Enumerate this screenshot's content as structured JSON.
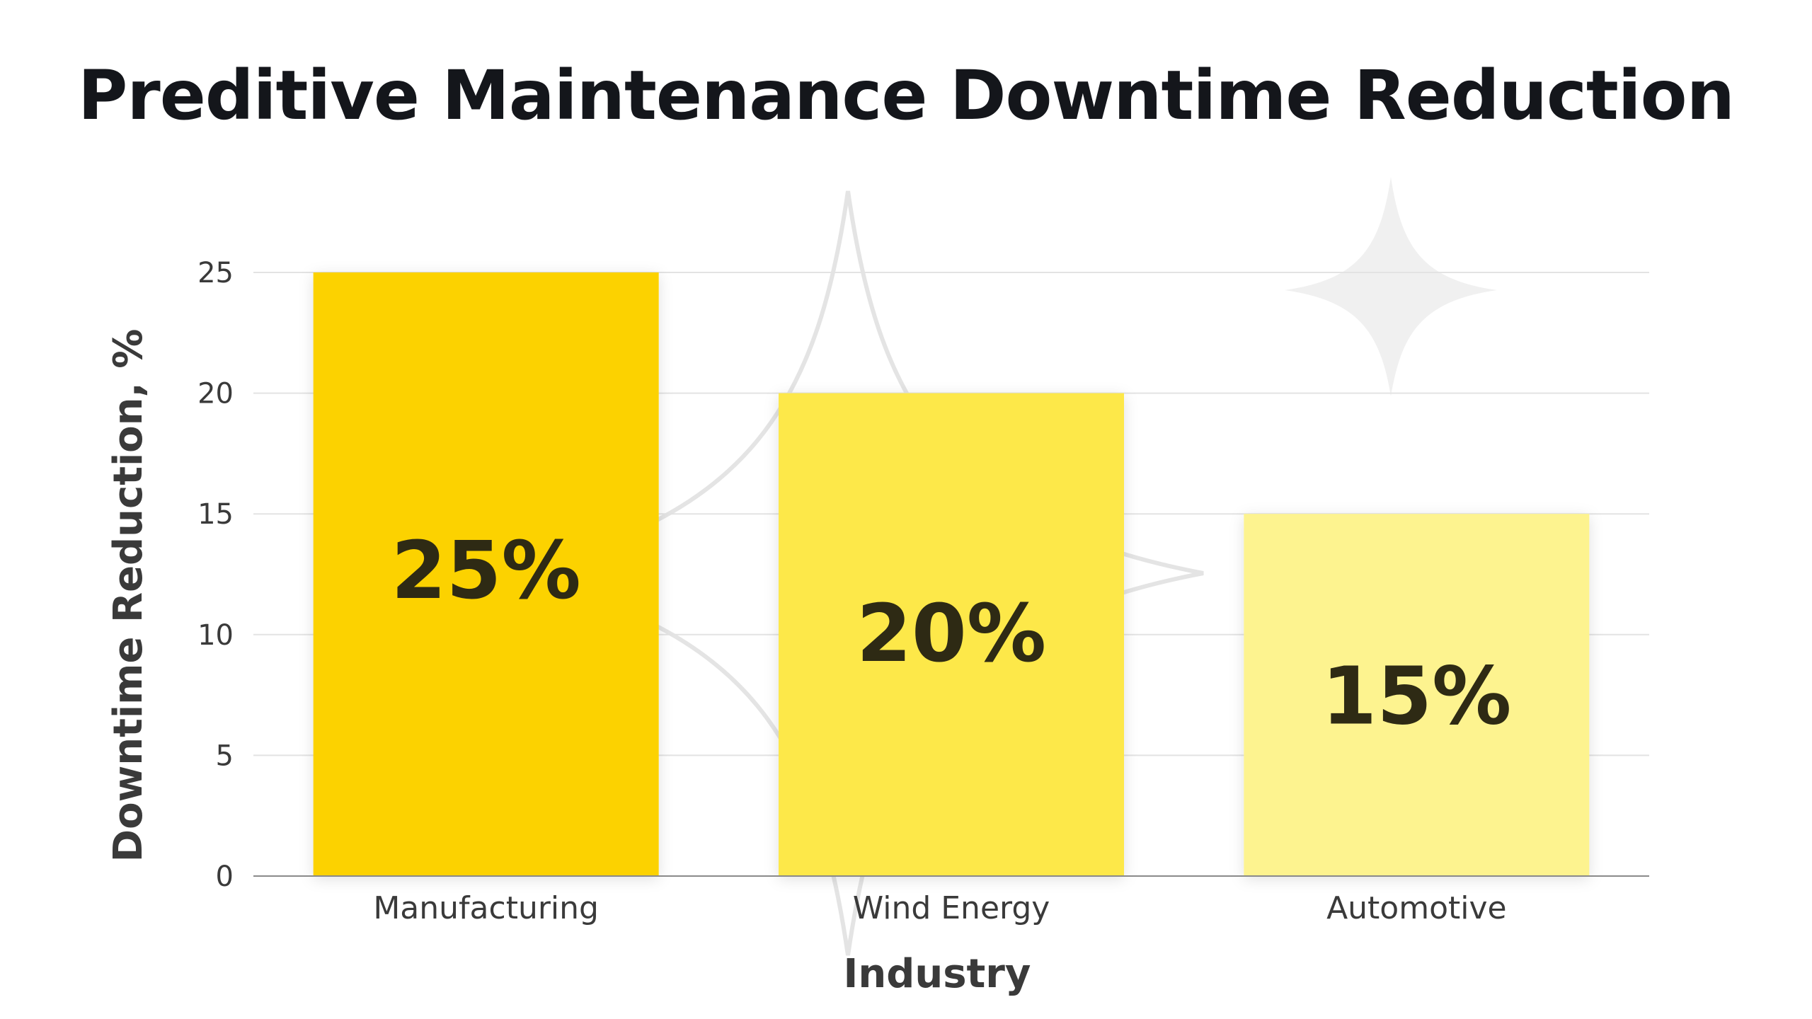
{
  "chart_data": {
    "type": "bar",
    "title": "Preditive Maintenance Downtime Reduction",
    "xlabel": "Industry",
    "ylabel": "Downtime Reduction, %",
    "categories": [
      "Manufacturing",
      "Wind Energy",
      "Automotive"
    ],
    "values": [
      25,
      20,
      15
    ],
    "data_labels": [
      "25%",
      "20%",
      "15%"
    ],
    "bar_colors": [
      "#fcd205",
      "#fde84a",
      "#fdf38f"
    ],
    "ylim": [
      0,
      25
    ],
    "yticks": [
      "0",
      "5",
      "10",
      "15",
      "20",
      "25"
    ],
    "ytick_values": [
      0,
      5,
      10,
      15,
      20,
      25
    ],
    "grid": true,
    "legend": "none"
  },
  "colors": {
    "title": "#14161b",
    "axis_text": "#3a3a3a",
    "axis_label": "#3a3a3a",
    "data_label": "#2e2a14",
    "grid": "#e3e3e3",
    "baseline": "#8a8a8a",
    "decoration": "#e6e6e6"
  }
}
